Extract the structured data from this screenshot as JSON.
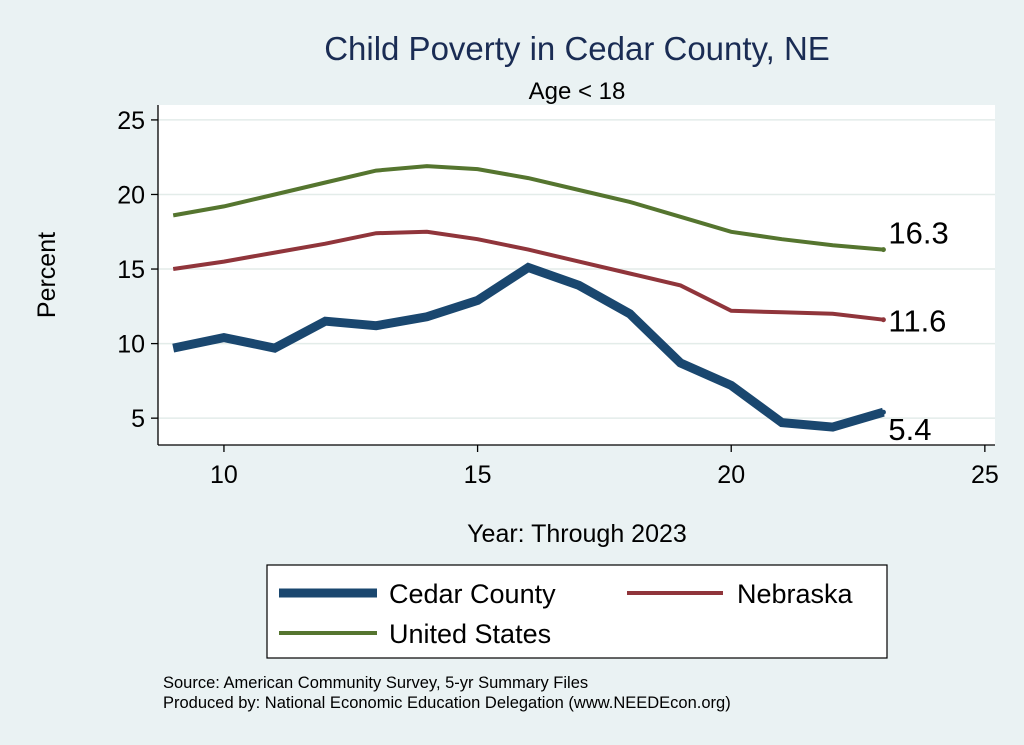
{
  "chart_data": {
    "type": "line",
    "title": "Child Poverty in Cedar County, NE",
    "subtitle": "Age < 18",
    "xlabel": "Year: Through 2023",
    "ylabel": "Percent",
    "xlim": [
      8.7,
      25.2
    ],
    "ylim": [
      3.2,
      26
    ],
    "x_ticks": [
      10,
      15,
      20,
      25
    ],
    "x_tick_labels": [
      "10",
      "15",
      "20",
      "25"
    ],
    "y_ticks": [
      5,
      10,
      15,
      20,
      25
    ],
    "y_tick_labels": [
      "5",
      "10",
      "15",
      "20",
      "25"
    ],
    "grid": "horizontal",
    "x": [
      9,
      10,
      11,
      12,
      13,
      14,
      15,
      16,
      17,
      18,
      19,
      20,
      21,
      22,
      23
    ],
    "series": [
      {
        "name": "Cedar County",
        "color": "#1a476f",
        "values": [
          9.7,
          10.4,
          9.7,
          11.5,
          11.2,
          11.8,
          12.9,
          15.1,
          13.9,
          12.0,
          8.7,
          7.2,
          4.7,
          4.4,
          5.4
        ],
        "end_label": "5.4"
      },
      {
        "name": "Nebraska",
        "color": "#90353b",
        "values": [
          15.0,
          15.5,
          16.1,
          16.7,
          17.4,
          17.5,
          17.0,
          16.3,
          15.5,
          14.7,
          13.9,
          12.2,
          12.1,
          12.0,
          11.6
        ],
        "end_label": "11.6"
      },
      {
        "name": "United States",
        "color": "#55752f",
        "values": [
          18.6,
          19.2,
          20.0,
          20.8,
          21.6,
          21.9,
          21.7,
          21.1,
          20.3,
          19.5,
          18.5,
          17.5,
          17.0,
          16.6,
          16.3
        ],
        "end_label": "16.3"
      }
    ],
    "legend": {
      "position": "bottom",
      "entries": [
        "Cedar County",
        "Nebraska",
        "United States"
      ]
    },
    "notes": [
      "Source: American Community Survey, 5-yr Summary Files",
      "Produced by: National Economic Education Delegation (www.NEEDEcon.org)"
    ]
  }
}
